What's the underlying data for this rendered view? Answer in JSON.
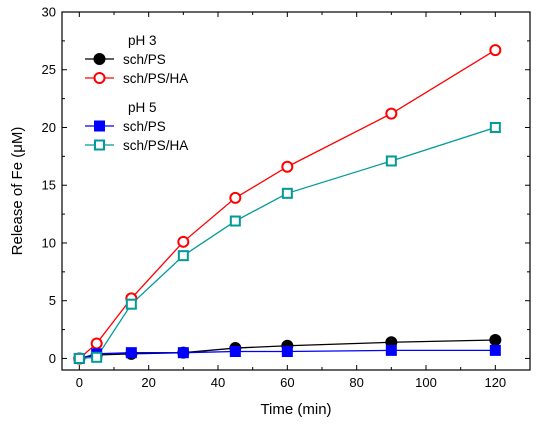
{
  "chart_data": {
    "type": "line",
    "xlabel": "Time (min)",
    "ylabel": "Release of Fe (μM)",
    "xlim": [
      -5,
      130
    ],
    "ylim": [
      -1,
      30
    ],
    "x_ticks": [
      0,
      20,
      40,
      60,
      80,
      100,
      120
    ],
    "y_ticks": [
      0,
      5,
      10,
      15,
      20,
      25,
      30
    ],
    "grid": false,
    "legend_position": "top-left",
    "legend_groups": [
      {
        "title": "pH 3",
        "series": [
          0,
          1
        ]
      },
      {
        "title": "pH 5",
        "series": [
          2,
          3
        ]
      }
    ],
    "x": [
      0,
      5,
      15,
      30,
      45,
      60,
      90,
      120
    ],
    "series": [
      {
        "name": "sch/PS",
        "color": "#000000",
        "line_color": "#000000",
        "marker": "circle",
        "filled": true,
        "values": [
          0.0,
          0.3,
          0.4,
          0.5,
          0.9,
          1.1,
          1.4,
          1.6
        ]
      },
      {
        "name": "sch/PS/HA",
        "color": "#ff0000",
        "line_color": "#ff0000",
        "marker": "circle",
        "filled": false,
        "values": [
          0.0,
          1.3,
          5.2,
          10.1,
          13.9,
          16.6,
          21.2,
          26.7
        ]
      },
      {
        "name": "sch/PS",
        "color": "#0000ff",
        "line_color": "#0000ff",
        "marker": "square",
        "filled": true,
        "values": [
          0.0,
          0.4,
          0.5,
          0.5,
          0.6,
          0.6,
          0.7,
          0.7
        ]
      },
      {
        "name": "sch/PS/HA",
        "color": "#009a9a",
        "line_color": "#009a9a",
        "marker": "square",
        "filled": false,
        "values": [
          0.0,
          0.1,
          4.7,
          8.9,
          11.9,
          14.3,
          17.1,
          20.0
        ]
      }
    ]
  }
}
